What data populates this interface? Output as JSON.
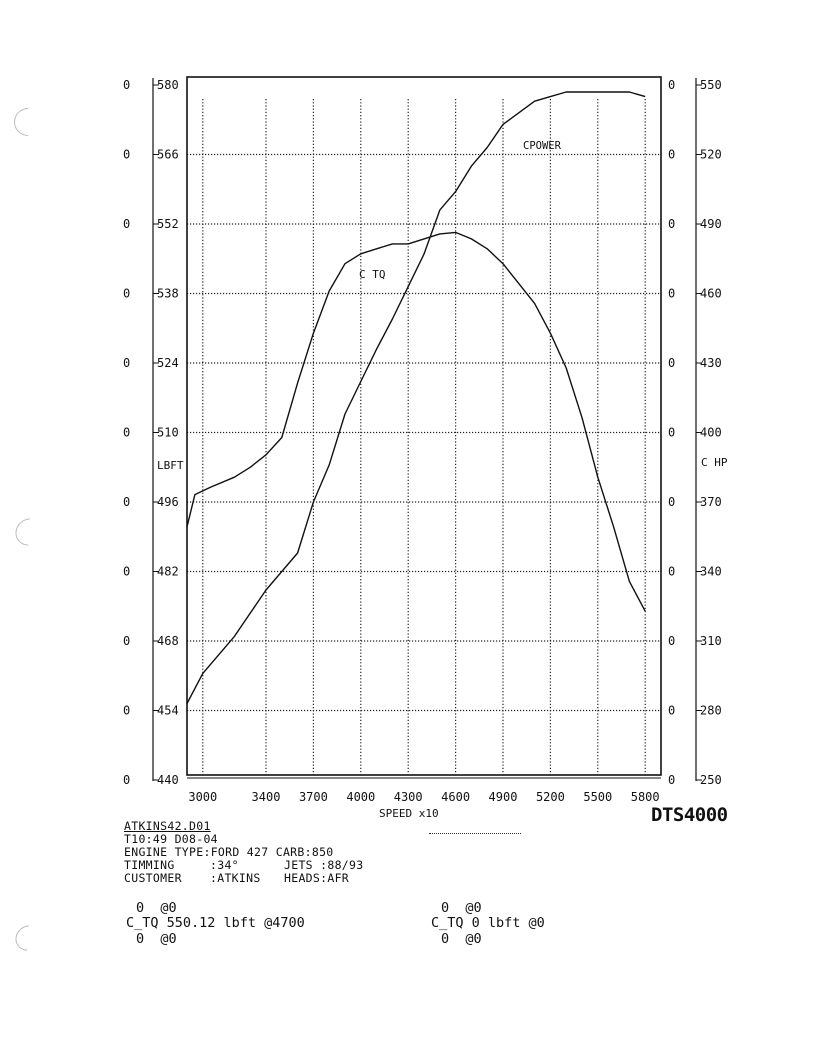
{
  "chart_data": {
    "type": "line",
    "x_ticks": [
      "3000",
      "3400",
      "3700",
      "4000",
      "4300",
      "4600",
      "4900",
      "5200",
      "5500",
      "5800"
    ],
    "xlim": [
      2900,
      5900
    ],
    "xlabel": "SPEED  x10",
    "left_axis": {
      "label": "LBFT",
      "ticks": [
        "440",
        "454",
        "468",
        "482",
        "496",
        "510",
        "524",
        "538",
        "552",
        "566",
        "580"
      ],
      "range": [
        440,
        580
      ]
    },
    "right_axis": {
      "label": "C HP",
      "ticks": [
        "250",
        "280",
        "310",
        "340",
        "370",
        "400",
        "430",
        "460",
        "490",
        "520",
        "550"
      ],
      "range": [
        250,
        550
      ]
    },
    "zero_column_left": [
      "0",
      "0",
      "0",
      "0",
      "0",
      "0",
      "0",
      "0",
      "0",
      "0",
      "0"
    ],
    "zero_column_right": [
      "0",
      "0",
      "0",
      "0",
      "0",
      "0",
      "0",
      "0",
      "0",
      "0",
      "0"
    ],
    "series": [
      {
        "name": "C TQ",
        "axis": "left",
        "points": [
          [
            2900,
            491
          ],
          [
            2950,
            497.5
          ],
          [
            3050,
            499
          ],
          [
            3200,
            501
          ],
          [
            3300,
            503
          ],
          [
            3400,
            505.5
          ],
          [
            3500,
            509
          ],
          [
            3600,
            520
          ],
          [
            3700,
            530
          ],
          [
            3800,
            538.5
          ],
          [
            3900,
            544
          ],
          [
            4000,
            546
          ],
          [
            4100,
            547
          ],
          [
            4200,
            548
          ],
          [
            4300,
            548
          ],
          [
            4400,
            549
          ],
          [
            4500,
            550
          ],
          [
            4600,
            550.3
          ],
          [
            4700,
            549
          ],
          [
            4800,
            547
          ],
          [
            4900,
            544
          ],
          [
            5000,
            540
          ],
          [
            5100,
            536
          ],
          [
            5200,
            530
          ],
          [
            5300,
            523
          ],
          [
            5400,
            513
          ],
          [
            5500,
            501
          ],
          [
            5600,
            491
          ],
          [
            5700,
            480
          ],
          [
            5800,
            474
          ]
        ]
      },
      {
        "name": "CPOWER",
        "axis": "right",
        "points": [
          [
            2900,
            283
          ],
          [
            3000,
            296
          ],
          [
            3200,
            312
          ],
          [
            3400,
            332
          ],
          [
            3600,
            348
          ],
          [
            3700,
            370
          ],
          [
            3800,
            386
          ],
          [
            3900,
            408
          ],
          [
            4000,
            422
          ],
          [
            4100,
            436
          ],
          [
            4200,
            449
          ],
          [
            4300,
            463
          ],
          [
            4400,
            477
          ],
          [
            4500,
            496
          ],
          [
            4600,
            504
          ],
          [
            4700,
            515
          ],
          [
            4800,
            523
          ],
          [
            4900,
            533
          ],
          [
            5000,
            538
          ],
          [
            5100,
            543
          ],
          [
            5200,
            545
          ],
          [
            5300,
            547
          ],
          [
            5400,
            547
          ],
          [
            5500,
            547
          ],
          [
            5600,
            547
          ],
          [
            5700,
            547
          ],
          [
            5800,
            545
          ]
        ]
      }
    ],
    "series_labels": [
      "C TQ",
      "CPOWER"
    ],
    "grid": true
  },
  "info": {
    "file": "ATKINS42.D01",
    "time_date": "T10:49 D08-04",
    "engine_label": "ENGINE TYPE",
    "engine_value": ":FORD 427",
    "carb_label": "CARB",
    "carb_value": ":850",
    "timing_label": "TIMMING",
    "timing_value": ":34°",
    "jets_label": "JETS",
    "jets_value": ":88/93",
    "customer_label": "CUSTOMER",
    "customer_value": ":ATKINS",
    "heads_label": "HEADS",
    "heads_value": ":AFR"
  },
  "brand": "DTS4000",
  "results_left": {
    "line1": "0  @0",
    "line2": "C_TQ 550.12 lbft @4700",
    "line3": "0  @0"
  },
  "results_right": {
    "line1": "0  @0",
    "line2": "C_TQ 0 lbft @0",
    "line3": "0  @0"
  }
}
